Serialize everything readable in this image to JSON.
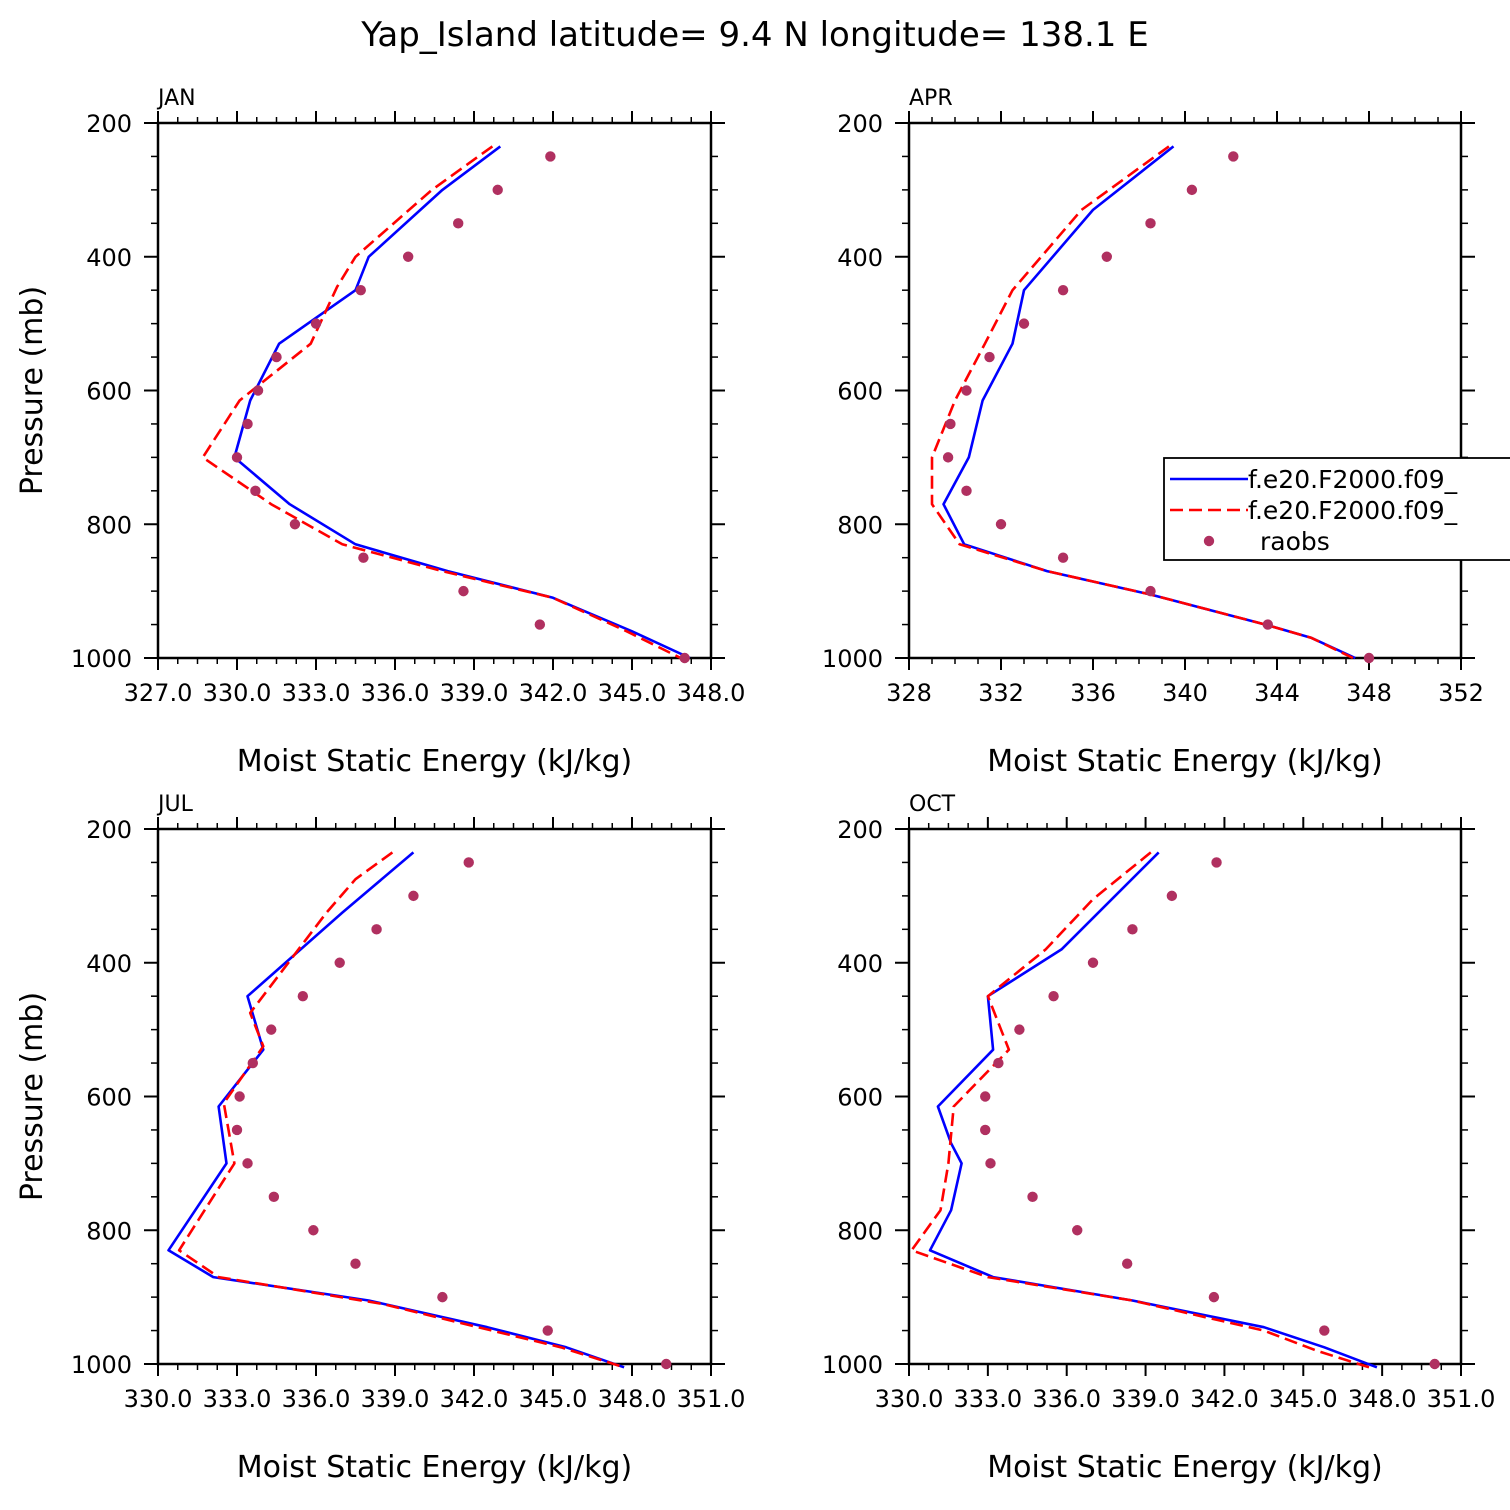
{
  "title": "Yap_Island  latitude= 9.4 N longitude= 138.1 E",
  "legend": {
    "entries": [
      "f.e20.F2000.f09_",
      "f.e20.F2000.f09_",
      "raobs"
    ]
  },
  "colors": {
    "series1": "#0000ff",
    "series2": "#ff0000",
    "raobs": "#b03060"
  },
  "chart_data": [
    {
      "type": "line",
      "panel_label": "JAN",
      "xlabel": "Moist Static Energy (kJ/kg)",
      "ylabel": "Pressure (mb)",
      "xlim": [
        327.0,
        348.0
      ],
      "ylim": [
        200,
        1000
      ],
      "y_inverted": true,
      "xticks": [
        327.0,
        330.0,
        333.0,
        336.0,
        339.0,
        342.0,
        345.0,
        348.0
      ],
      "xtick_labels": [
        "327.0",
        "330.0",
        "333.0",
        "336.0",
        "339.0",
        "342.0",
        "345.0",
        "348.0"
      ],
      "yticks": [
        200,
        400,
        600,
        800,
        1000
      ],
      "ytick_labels": [
        "200",
        "400",
        "600",
        "800",
        "1000"
      ],
      "legend_shown": false,
      "series": [
        {
          "name": "f.e20.F2000.f09_",
          "style": "solid",
          "x": [
            340.0,
            337.8,
            335.0,
            334.5,
            331.6,
            330.5,
            329.9,
            332.0,
            334.5,
            338.0,
            342.0,
            345.0,
            347.2
          ],
          "y": [
            235,
            300,
            400,
            450,
            530,
            615,
            700,
            770,
            830,
            870,
            910,
            960,
            1000
          ]
        },
        {
          "name": "f.e20.F2000.f09_",
          "style": "dashed",
          "x": [
            339.7,
            337.4,
            334.5,
            333.8,
            332.8,
            330.1,
            328.7,
            331.3,
            334.0,
            337.8,
            342.0,
            344.8,
            347.1
          ],
          "y": [
            235,
            300,
            400,
            445,
            530,
            615,
            700,
            770,
            830,
            870,
            910,
            960,
            1005
          ]
        }
      ],
      "points": {
        "name": "raobs",
        "x": [
          341.9,
          339.9,
          338.4,
          336.5,
          334.7,
          333.0,
          331.5,
          330.8,
          330.4,
          330.0,
          330.7,
          332.2,
          334.8,
          338.6,
          341.5,
          347.0
        ],
        "y": [
          250,
          300,
          350,
          400,
          450,
          500,
          550,
          600,
          650,
          700,
          750,
          800,
          850,
          900,
          950,
          1000
        ]
      }
    },
    {
      "type": "line",
      "panel_label": "APR",
      "xlabel": "Moist Static Energy (kJ/kg)",
      "ylabel": "",
      "xlim": [
        328,
        352
      ],
      "ylim": [
        200,
        1000
      ],
      "y_inverted": true,
      "xticks": [
        328,
        332,
        336,
        340,
        344,
        348,
        352
      ],
      "xtick_labels": [
        "328",
        "332",
        "336",
        "340",
        "344",
        "348",
        "352"
      ],
      "yticks": [
        200,
        400,
        600,
        800,
        1000
      ],
      "ytick_labels": [
        "200",
        "400",
        "600",
        "800",
        "1000"
      ],
      "legend_shown": true,
      "series": [
        {
          "name": "f.e20.F2000.f09_",
          "style": "solid",
          "x": [
            339.5,
            336.0,
            333.0,
            332.5,
            331.2,
            330.6,
            329.5,
            330.4,
            334.0,
            338.5,
            343.5,
            345.5,
            347.4
          ],
          "y": [
            235,
            330,
            450,
            530,
            615,
            700,
            770,
            830,
            870,
            905,
            950,
            970,
            1000
          ]
        },
        {
          "name": "f.e20.F2000.f09_",
          "style": "dashed",
          "x": [
            339.3,
            335.5,
            332.5,
            331.3,
            330.0,
            329.0,
            329.0,
            330.2,
            334.0,
            338.5,
            343.5,
            345.5,
            347.3
          ],
          "y": [
            235,
            330,
            450,
            530,
            615,
            700,
            770,
            830,
            870,
            905,
            950,
            970,
            1000
          ]
        }
      ],
      "points": {
        "name": "raobs",
        "x": [
          342.1,
          340.3,
          338.5,
          336.6,
          334.7,
          333.0,
          331.5,
          330.5,
          329.8,
          329.7,
          330.5,
          332.0,
          334.7,
          338.5,
          343.6,
          348.0
        ],
        "y": [
          250,
          300,
          350,
          400,
          450,
          500,
          550,
          600,
          650,
          700,
          750,
          800,
          850,
          900,
          950,
          1000
        ]
      }
    },
    {
      "type": "line",
      "panel_label": "JUL",
      "xlabel": "Moist Static Energy (kJ/kg)",
      "ylabel": "Pressure (mb)",
      "xlim": [
        330.0,
        351.0
      ],
      "ylim": [
        200,
        1000
      ],
      "y_inverted": true,
      "xticks": [
        330.0,
        333.0,
        336.0,
        339.0,
        342.0,
        345.0,
        348.0,
        351.0
      ],
      "xtick_labels": [
        "330.0",
        "333.0",
        "336.0",
        "339.0",
        "342.0",
        "345.0",
        "348.0",
        "351.0"
      ],
      "yticks": [
        200,
        400,
        600,
        800,
        1000
      ],
      "ytick_labels": [
        "200",
        "400",
        "600",
        "800",
        "1000"
      ],
      "legend_shown": false,
      "series": [
        {
          "name": "f.e20.F2000.f09_",
          "style": "solid",
          "x": [
            339.7,
            337.0,
            333.4,
            334.0,
            332.3,
            332.6,
            330.4,
            332.1,
            338.0,
            342.5,
            345.5,
            347.7
          ],
          "y": [
            235,
            325,
            450,
            530,
            615,
            700,
            830,
            870,
            905,
            945,
            975,
            1005
          ]
        },
        {
          "name": "f.e20.F2000.f09_",
          "style": "dashed",
          "x": [
            338.9,
            337.5,
            336.4,
            333.5,
            334.0,
            332.5,
            332.9,
            330.8,
            332.3,
            338.5,
            345.3,
            347.7
          ],
          "y": [
            235,
            275,
            325,
            475,
            525,
            610,
            700,
            830,
            870,
            910,
            975,
            1005
          ]
        }
      ],
      "points": {
        "name": "raobs",
        "x": [
          341.8,
          339.7,
          338.3,
          336.9,
          335.5,
          334.3,
          333.6,
          333.1,
          333.0,
          333.4,
          334.4,
          335.9,
          337.5,
          340.8,
          344.8,
          349.3
        ],
        "y": [
          250,
          300,
          350,
          400,
          450,
          500,
          550,
          600,
          650,
          700,
          750,
          800,
          850,
          900,
          950,
          1000
        ]
      }
    },
    {
      "type": "line",
      "panel_label": "OCT",
      "xlabel": "Moist Static Energy (kJ/kg)",
      "ylabel": "",
      "xlim": [
        330.0,
        351.0
      ],
      "ylim": [
        200,
        1000
      ],
      "y_inverted": true,
      "xticks": [
        330.0,
        333.0,
        336.0,
        339.0,
        342.0,
        345.0,
        348.0,
        351.0
      ],
      "xtick_labels": [
        "330.0",
        "333.0",
        "336.0",
        "339.0",
        "342.0",
        "345.0",
        "348.0",
        "351.0"
      ],
      "yticks": [
        200,
        400,
        600,
        800,
        1000
      ],
      "ytick_labels": [
        "200",
        "400",
        "600",
        "800",
        "1000"
      ],
      "legend_shown": false,
      "series": [
        {
          "name": "f.e20.F2000.f09_",
          "style": "solid",
          "x": [
            339.5,
            335.8,
            333.0,
            333.2,
            331.1,
            331.6,
            332.0,
            331.6,
            330.8,
            333.2,
            338.5,
            343.5,
            345.8,
            347.8
          ],
          "y": [
            235,
            380,
            450,
            530,
            615,
            670,
            700,
            770,
            830,
            870,
            905,
            945,
            975,
            1005
          ]
        },
        {
          "name": "f.e20.F2000.f09_",
          "style": "dashed",
          "x": [
            339.2,
            337.0,
            335.2,
            333.0,
            333.8,
            331.7,
            331.5,
            331.2,
            330.1,
            333.0,
            338.5,
            343.5,
            345.5,
            347.5
          ],
          "y": [
            235,
            305,
            380,
            450,
            530,
            615,
            700,
            770,
            830,
            870,
            905,
            950,
            980,
            1005
          ]
        }
      ],
      "points": {
        "name": "raobs",
        "x": [
          341.7,
          340.0,
          338.5,
          337.0,
          335.5,
          334.2,
          333.4,
          332.9,
          332.9,
          333.1,
          334.7,
          336.4,
          338.3,
          341.6,
          345.8,
          350.0
        ],
        "y": [
          250,
          300,
          350,
          400,
          450,
          500,
          550,
          600,
          650,
          700,
          750,
          800,
          850,
          900,
          950,
          1000
        ]
      }
    }
  ]
}
